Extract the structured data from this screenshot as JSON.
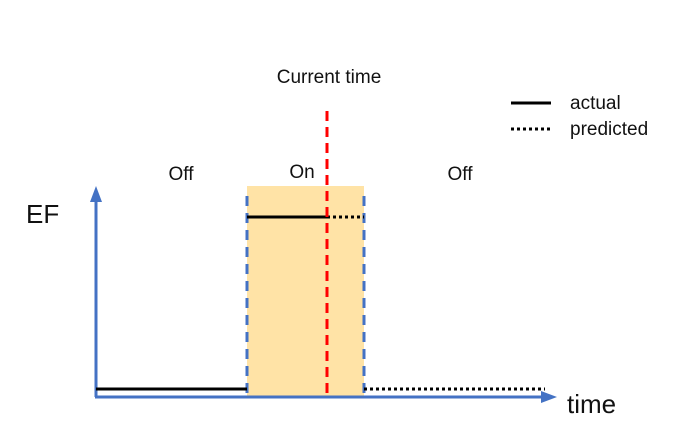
{
  "labels": {
    "current_time": "Current time",
    "off_before": "Off",
    "on": "On",
    "off_after": "Off",
    "y_axis": "EF",
    "x_axis": "time"
  },
  "legend": {
    "actual": "actual",
    "predicted": "predicted"
  },
  "colors": {
    "axis": "#4472c4",
    "on_region": "#ffe3a6",
    "current_time_line": "#ff0000",
    "signal": "#000000",
    "boundary_dashes": "#4472c4"
  }
}
